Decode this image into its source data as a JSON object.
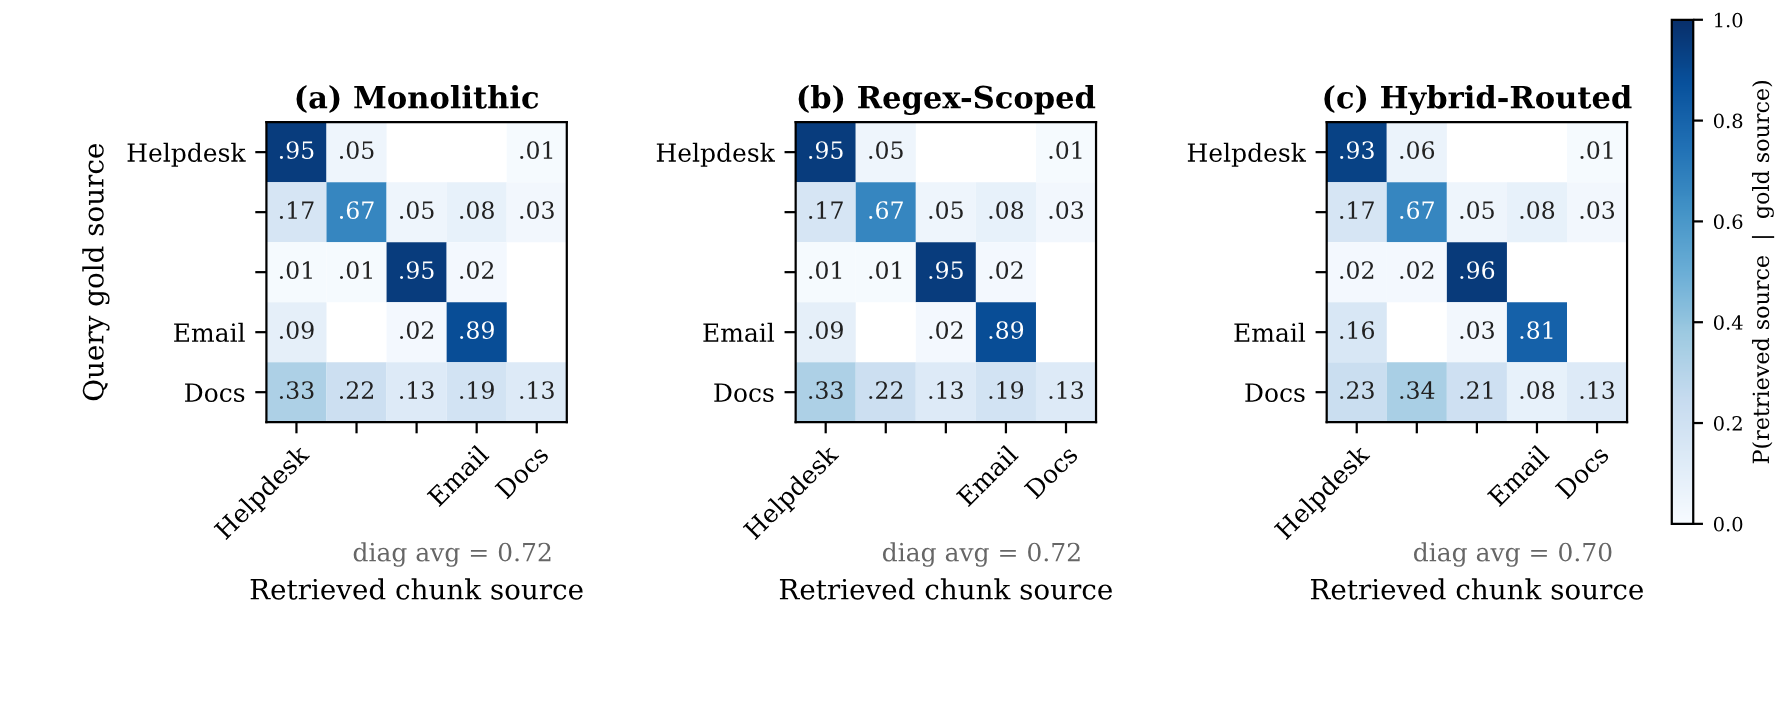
{
  "chart_data": [
    {
      "type": "heatmap",
      "title": "(a) Monolithic",
      "xlabel": "Retrieved chunk source",
      "ylabel": "Query gold source",
      "categories": [
        "Helpdesk",
        null,
        null,
        "Email",
        "Docs"
      ],
      "y_categories": [
        "Helpdesk",
        null,
        null,
        "Email",
        "Docs"
      ],
      "cells": [
        [
          0.95,
          0.05,
          null,
          null,
          0.01
        ],
        [
          0.17,
          0.67,
          0.05,
          0.08,
          0.03
        ],
        [
          0.01,
          0.01,
          0.95,
          0.02,
          null
        ],
        [
          0.09,
          null,
          0.02,
          0.89,
          null
        ],
        [
          0.33,
          0.22,
          0.13,
          0.19,
          0.13
        ]
      ],
      "cell_labels": [
        [
          ".95",
          ".05",
          null,
          null,
          ".01"
        ],
        [
          ".17",
          ".67",
          ".05",
          ".08",
          ".03"
        ],
        [
          ".01",
          ".01",
          ".95",
          ".02",
          null
        ],
        [
          ".09",
          null,
          ".02",
          ".89",
          null
        ],
        [
          ".33",
          ".22",
          ".13",
          ".19",
          ".13"
        ]
      ],
      "annotations": [
        "diag avg = 0.72"
      ]
    },
    {
      "type": "heatmap",
      "title": "(b) Regex-Scoped",
      "xlabel": "Retrieved chunk source",
      "categories": [
        "Helpdesk",
        null,
        null,
        "Email",
        "Docs"
      ],
      "y_categories": [
        "Helpdesk",
        null,
        null,
        "Email",
        "Docs"
      ],
      "cells": [
        [
          0.95,
          0.05,
          null,
          null,
          0.01
        ],
        [
          0.17,
          0.67,
          0.05,
          0.08,
          0.03
        ],
        [
          0.01,
          0.01,
          0.95,
          0.02,
          null
        ],
        [
          0.09,
          null,
          0.02,
          0.89,
          null
        ],
        [
          0.33,
          0.22,
          0.13,
          0.19,
          0.13
        ]
      ],
      "cell_labels": [
        [
          ".95",
          ".05",
          null,
          null,
          ".01"
        ],
        [
          ".17",
          ".67",
          ".05",
          ".08",
          ".03"
        ],
        [
          ".01",
          ".01",
          ".95",
          ".02",
          null
        ],
        [
          ".09",
          null,
          ".02",
          ".89",
          null
        ],
        [
          ".33",
          ".22",
          ".13",
          ".19",
          ".13"
        ]
      ],
      "annotations": [
        "diag avg = 0.72"
      ]
    },
    {
      "type": "heatmap",
      "title": "(c) Hybrid-Routed",
      "xlabel": "Retrieved chunk source",
      "clabel": "P(retrieved source  |  gold source)",
      "categories": [
        "Helpdesk",
        null,
        null,
        "Email",
        "Docs"
      ],
      "y_categories": [
        "Helpdesk",
        null,
        null,
        "Email",
        "Docs"
      ],
      "cells": [
        [
          0.93,
          0.06,
          null,
          null,
          0.01
        ],
        [
          0.17,
          0.67,
          0.05,
          0.08,
          0.03
        ],
        [
          0.02,
          0.02,
          0.96,
          null,
          null
        ],
        [
          0.16,
          null,
          0.03,
          0.81,
          null
        ],
        [
          0.23,
          0.34,
          0.21,
          0.08,
          0.13
        ]
      ],
      "cell_labels": [
        [
          ".93",
          ".06",
          null,
          null,
          ".01"
        ],
        [
          ".17",
          ".67",
          ".05",
          ".08",
          ".03"
        ],
        [
          ".02",
          ".02",
          ".96",
          null,
          null
        ],
        [
          ".16",
          null,
          ".03",
          ".81",
          null
        ],
        [
          ".23",
          ".34",
          ".21",
          ".08",
          ".13"
        ]
      ],
      "clim": [
        0,
        1
      ],
      "cticks": [
        {
          "value": 0,
          "label": "0.0"
        },
        {
          "value": 0.2,
          "label": "0.2"
        },
        {
          "value": 0.4,
          "label": "0.4"
        },
        {
          "value": 0.6,
          "label": "0.6"
        },
        {
          "value": 0.8,
          "label": "0.8"
        },
        {
          "value": 1,
          "label": "1.0"
        }
      ],
      "annotations": [
        "diag avg = 0.70"
      ]
    }
  ]
}
